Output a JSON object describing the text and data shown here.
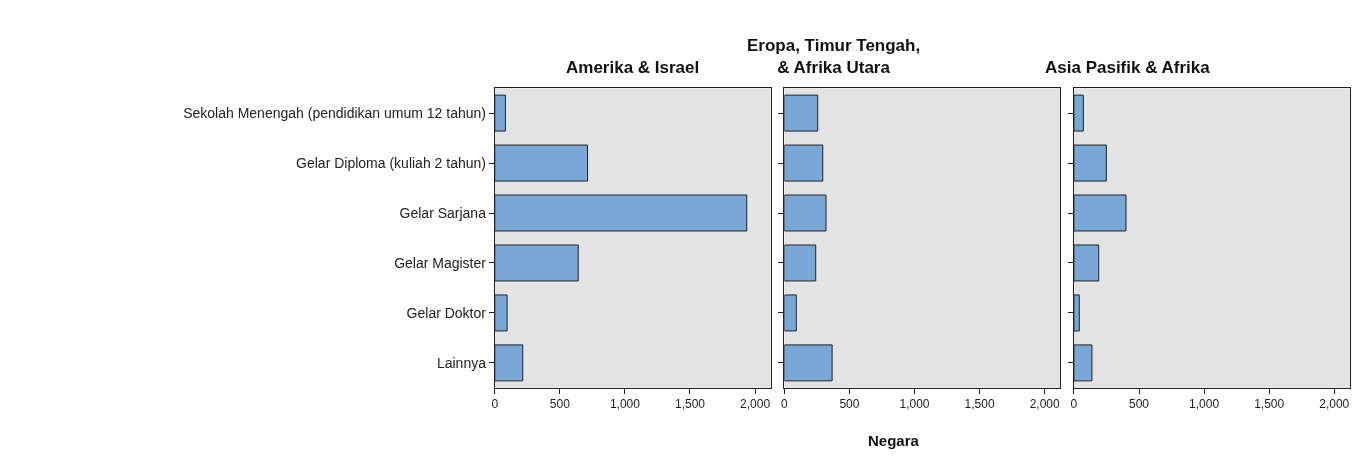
{
  "chart_data": [
    {
      "type": "bar",
      "orientation": "horizontal",
      "title": "Amerika & Israel",
      "categories": [
        "Sekolah Menengah (pendidikan umum 12 tahun)",
        "Gelar Diploma (kuliah 2 tahun)",
        "Gelar Sarjana",
        "Gelar Magister",
        "Gelar Doktor",
        "Lainnya"
      ],
      "values": [
        82,
        713,
        1936,
        641,
        95,
        215
      ],
      "color": "#7aa8d6",
      "xlim": [
        0,
        2120
      ],
      "xticks": [
        0,
        500,
        {
          "value": 1000,
          "label": "1,000"
        },
        {
          "value": 1500,
          "label": "1,500"
        },
        {
          "value": 2000,
          "label": "2,000"
        }
      ],
      "grid": false
    },
    {
      "type": "bar",
      "orientation": "horizontal",
      "title": "Eropa, Timur Tengah,\n& Afrika Utara",
      "xlabel": "Negara",
      "categories": [
        "Sekolah Menengah (pendidikan umum 12 tahun)",
        "Gelar Diploma (kuliah 2 tahun)",
        "Gelar Sarjana",
        "Gelar Magister",
        "Gelar Doktor",
        "Lainnya"
      ],
      "values": [
        256,
        295,
        320,
        241,
        92,
        367
      ],
      "color": "#7aa8d6",
      "xlim": [
        0,
        2120
      ],
      "xticks": [
        0,
        500,
        {
          "value": 1000,
          "label": "1,000"
        },
        {
          "value": 1500,
          "label": "1,500"
        },
        {
          "value": 2000,
          "label": "2,000"
        }
      ],
      "tick_labels": "x",
      "grid": false
    },
    {
      "type": "bar",
      "orientation": "horizontal",
      "title": "Asia Pasifik & Afrika",
      "categories": [
        "Sekolah Menengah (pendidikan umum 12 tahun)",
        "Gelar Diploma (kuliah 2 tahun)",
        "Gelar Sarjana",
        "Gelar Magister",
        "Gelar Doktor",
        "Lainnya"
      ],
      "values": [
        72,
        249,
        400,
        190,
        41,
        138
      ],
      "color": "#7aa8d6",
      "xlim": [
        0,
        2120
      ],
      "xticks": [
        0,
        500,
        {
          "value": 1000,
          "label": "1,000"
        },
        {
          "value": 1500,
          "label": "1,500"
        },
        {
          "value": 2000,
          "label": "2,000"
        }
      ],
      "tick_labels": "x",
      "grid": false
    }
  ]
}
